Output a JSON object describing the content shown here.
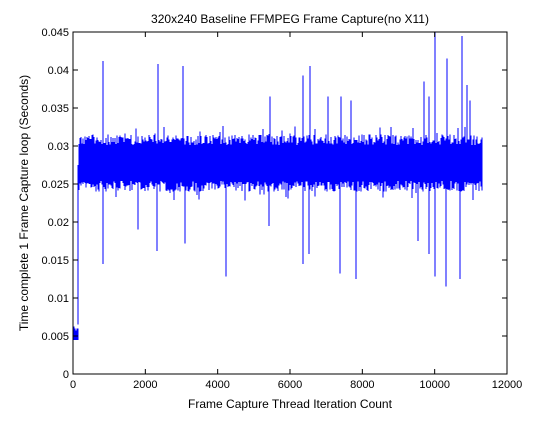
{
  "chart_data": {
    "type": "line",
    "title": "320x240 Baseline FFMPEG Frame Capture(no X11)",
    "xlabel": "Frame Capture Thread Iteration Count",
    "ylabel": "Time complete 1 Frame Capture loop (Seconds)",
    "xlim": [
      0,
      12000
    ],
    "ylim": [
      0,
      0.045
    ],
    "x_ticks": [
      0,
      2000,
      4000,
      6000,
      8000,
      10000,
      12000
    ],
    "y_ticks": [
      0,
      0.005,
      0.01,
      0.015,
      0.02,
      0.025,
      0.03,
      0.035,
      0.04,
      0.045
    ],
    "x_tick_labels": [
      "0",
      "2000",
      "4000",
      "6000",
      "8000",
      "10000",
      "12000"
    ],
    "y_tick_labels": [
      "0",
      "0.005",
      "0.01",
      "0.015",
      "0.02",
      "0.025",
      "0.03",
      "0.035",
      "0.04",
      "0.045"
    ],
    "grid": false,
    "legend": "none",
    "series": [
      {
        "color": "#0000ff",
        "n_points": 11300,
        "startup": {
          "x_range": [
            0,
            130
          ],
          "y_range": [
            0.0045,
            0.0065
          ]
        },
        "band": {
          "x_range": [
            130,
            11300
          ],
          "y_mean": 0.0275,
          "y_low": 0.024,
          "y_high": 0.0315
        },
        "spikes_up": [
          {
            "x": 820,
            "y": 0.0412
          },
          {
            "x": 2350,
            "y": 0.0408
          },
          {
            "x": 3050,
            "y": 0.0405
          },
          {
            "x": 5450,
            "y": 0.0365
          },
          {
            "x": 6350,
            "y": 0.0393
          },
          {
            "x": 6550,
            "y": 0.0405
          },
          {
            "x": 7050,
            "y": 0.0365
          },
          {
            "x": 7400,
            "y": 0.0365
          },
          {
            "x": 7700,
            "y": 0.036
          },
          {
            "x": 9700,
            "y": 0.0385
          },
          {
            "x": 9850,
            "y": 0.0365
          },
          {
            "x": 10000,
            "y": 0.045
          },
          {
            "x": 10350,
            "y": 0.0415
          },
          {
            "x": 10750,
            "y": 0.0445
          },
          {
            "x": 10900,
            "y": 0.038
          },
          {
            "x": 10990,
            "y": 0.036
          }
        ],
        "spikes_down": [
          {
            "x": 820,
            "y": 0.0145
          },
          {
            "x": 1800,
            "y": 0.019
          },
          {
            "x": 2320,
            "y": 0.0162
          },
          {
            "x": 3100,
            "y": 0.0172
          },
          {
            "x": 4220,
            "y": 0.0128
          },
          {
            "x": 5420,
            "y": 0.0195
          },
          {
            "x": 6350,
            "y": 0.0145
          },
          {
            "x": 6520,
            "y": 0.0158
          },
          {
            "x": 7380,
            "y": 0.0132
          },
          {
            "x": 7820,
            "y": 0.0125
          },
          {
            "x": 9550,
            "y": 0.0175
          },
          {
            "x": 9850,
            "y": 0.0158
          },
          {
            "x": 10000,
            "y": 0.0128
          },
          {
            "x": 10320,
            "y": 0.0115
          },
          {
            "x": 10700,
            "y": 0.0125
          }
        ]
      }
    ]
  }
}
